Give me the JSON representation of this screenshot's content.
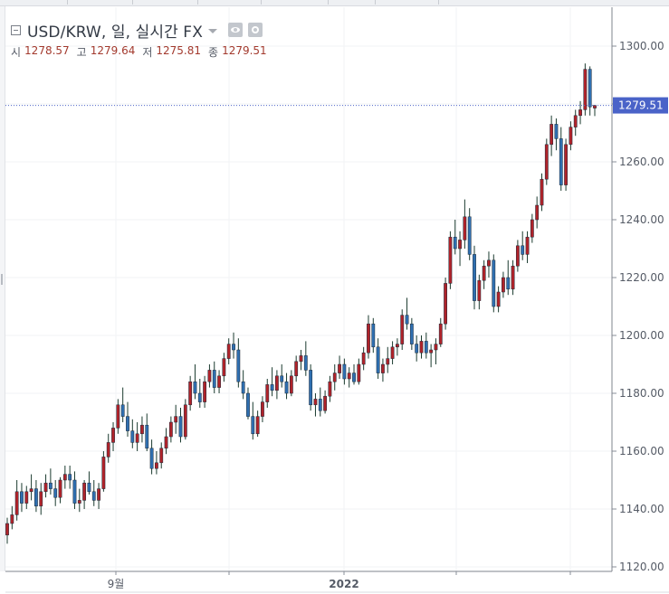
{
  "header": {
    "title": "USD/KRW, 일, 실시간 FX",
    "ohlc": [
      {
        "label": "시",
        "value": "1278.57"
      },
      {
        "label": "고",
        "value": "1279.64"
      },
      {
        "label": "저",
        "value": "1275.81"
      },
      {
        "label": "종",
        "value": "1279.51"
      }
    ],
    "icons": [
      "collapse-icon",
      "dropdown-icon",
      "visibility-icon",
      "settings-icon"
    ]
  },
  "colors": {
    "up": "#b0232a",
    "down": "#2f6fb0",
    "wick": "#1b3b2f",
    "grid": "#f2f3f5",
    "axis_text": "#555b66",
    "price_line": "#5267c9",
    "price_label_bg": "#4a63c8"
  },
  "chart_data": {
    "type": "candlestick",
    "ylim": [
      1120,
      1305
    ],
    "y_ticks": [
      "1120.00",
      "1140.00",
      "1160.00",
      "1180.00",
      "1200.00",
      "1220.00",
      "1240.00",
      "1260.00",
      "1280.00",
      "1300.00"
    ],
    "x_tick_labels": [
      "9월",
      "2022"
    ],
    "last_price": "1279.51",
    "candles": [
      [
        1131,
        1137,
        1128,
        1135
      ],
      [
        1135,
        1141,
        1133,
        1138
      ],
      [
        1138,
        1150,
        1136,
        1146
      ],
      [
        1146,
        1149,
        1139,
        1142
      ],
      [
        1142,
        1148,
        1140,
        1146
      ],
      [
        1146,
        1152,
        1143,
        1147
      ],
      [
        1147,
        1150,
        1139,
        1141
      ],
      [
        1141,
        1149,
        1138,
        1146
      ],
      [
        1146,
        1152,
        1144,
        1149
      ],
      [
        1149,
        1154,
        1145,
        1147
      ],
      [
        1147,
        1150,
        1141,
        1144
      ],
      [
        1144,
        1151,
        1142,
        1150
      ],
      [
        1150,
        1155,
        1147,
        1152
      ],
      [
        1152,
        1155,
        1147,
        1150
      ],
      [
        1150,
        1153,
        1140,
        1142
      ],
      [
        1142,
        1147,
        1139,
        1143
      ],
      [
        1143,
        1150,
        1140,
        1149
      ],
      [
        1149,
        1153,
        1145,
        1146
      ],
      [
        1146,
        1150,
        1141,
        1143
      ],
      [
        1143,
        1149,
        1140,
        1147
      ],
      [
        1147,
        1160,
        1146,
        1158
      ],
      [
        1158,
        1166,
        1156,
        1163
      ],
      [
        1163,
        1170,
        1160,
        1168
      ],
      [
        1168,
        1178,
        1166,
        1176
      ],
      [
        1176,
        1182,
        1170,
        1172
      ],
      [
        1172,
        1177,
        1165,
        1167
      ],
      [
        1167,
        1171,
        1161,
        1163
      ],
      [
        1163,
        1170,
        1160,
        1166
      ],
      [
        1166,
        1172,
        1163,
        1169
      ],
      [
        1169,
        1173,
        1160,
        1161
      ],
      [
        1161,
        1164,
        1152,
        1154
      ],
      [
        1154,
        1160,
        1152,
        1156
      ],
      [
        1156,
        1163,
        1154,
        1161
      ],
      [
        1161,
        1168,
        1159,
        1165
      ],
      [
        1165,
        1172,
        1163,
        1170
      ],
      [
        1170,
        1176,
        1166,
        1172
      ],
      [
        1172,
        1175,
        1163,
        1165
      ],
      [
        1165,
        1178,
        1164,
        1176
      ],
      [
        1176,
        1186,
        1174,
        1184
      ],
      [
        1184,
        1190,
        1178,
        1180
      ],
      [
        1180,
        1185,
        1175,
        1177
      ],
      [
        1177,
        1186,
        1175,
        1184
      ],
      [
        1184,
        1190,
        1182,
        1188
      ],
      [
        1188,
        1191,
        1180,
        1182
      ],
      [
        1182,
        1188,
        1180,
        1186
      ],
      [
        1186,
        1194,
        1184,
        1192
      ],
      [
        1192,
        1199,
        1190,
        1197
      ],
      [
        1197,
        1201,
        1192,
        1195
      ],
      [
        1195,
        1199,
        1182,
        1184
      ],
      [
        1184,
        1188,
        1178,
        1180
      ],
      [
        1180,
        1182,
        1171,
        1172
      ],
      [
        1172,
        1177,
        1164,
        1166
      ],
      [
        1166,
        1174,
        1165,
        1172
      ],
      [
        1172,
        1179,
        1170,
        1177
      ],
      [
        1177,
        1185,
        1175,
        1183
      ],
      [
        1183,
        1189,
        1179,
        1181
      ],
      [
        1181,
        1188,
        1178,
        1186
      ],
      [
        1186,
        1190,
        1182,
        1184
      ],
      [
        1184,
        1187,
        1178,
        1180
      ],
      [
        1180,
        1188,
        1179,
        1186
      ],
      [
        1186,
        1193,
        1184,
        1191
      ],
      [
        1191,
        1195,
        1188,
        1193
      ],
      [
        1193,
        1198,
        1186,
        1188
      ],
      [
        1188,
        1190,
        1174,
        1176
      ],
      [
        1176,
        1180,
        1172,
        1178
      ],
      [
        1178,
        1182,
        1172,
        1174
      ],
      [
        1174,
        1181,
        1173,
        1179
      ],
      [
        1179,
        1186,
        1177,
        1184
      ],
      [
        1184,
        1190,
        1181,
        1187
      ],
      [
        1187,
        1193,
        1185,
        1190
      ],
      [
        1190,
        1192,
        1183,
        1185
      ],
      [
        1185,
        1189,
        1182,
        1187
      ],
      [
        1187,
        1190,
        1183,
        1184
      ],
      [
        1184,
        1192,
        1183,
        1190
      ],
      [
        1190,
        1196,
        1188,
        1194
      ],
      [
        1194,
        1207,
        1192,
        1204
      ],
      [
        1204,
        1206,
        1194,
        1196
      ],
      [
        1196,
        1199,
        1185,
        1187
      ],
      [
        1187,
        1192,
        1184,
        1190
      ],
      [
        1190,
        1196,
        1187,
        1192
      ],
      [
        1192,
        1198,
        1190,
        1196
      ],
      [
        1196,
        1199,
        1193,
        1197
      ],
      [
        1197,
        1209,
        1195,
        1207
      ],
      [
        1207,
        1213,
        1202,
        1204
      ],
      [
        1204,
        1206,
        1195,
        1197
      ],
      [
        1197,
        1200,
        1191,
        1194
      ],
      [
        1194,
        1200,
        1192,
        1198
      ],
      [
        1198,
        1201,
        1192,
        1194
      ],
      [
        1194,
        1197,
        1189,
        1195
      ],
      [
        1195,
        1199,
        1190,
        1197
      ],
      [
        1197,
        1206,
        1196,
        1204
      ],
      [
        1204,
        1220,
        1202,
        1218
      ],
      [
        1218,
        1236,
        1216,
        1234
      ],
      [
        1234,
        1240,
        1228,
        1230
      ],
      [
        1230,
        1236,
        1224,
        1233
      ],
      [
        1233,
        1247,
        1230,
        1241
      ],
      [
        1241,
        1244,
        1226,
        1228
      ],
      [
        1228,
        1231,
        1209,
        1212
      ],
      [
        1212,
        1221,
        1209,
        1219
      ],
      [
        1219,
        1226,
        1216,
        1224
      ],
      [
        1224,
        1229,
        1220,
        1226
      ],
      [
        1226,
        1228,
        1208,
        1210
      ],
      [
        1210,
        1217,
        1208,
        1215
      ],
      [
        1215,
        1222,
        1213,
        1220
      ],
      [
        1220,
        1226,
        1214,
        1216
      ],
      [
        1216,
        1226,
        1214,
        1224
      ],
      [
        1224,
        1233,
        1222,
        1231
      ],
      [
        1231,
        1236,
        1226,
        1228
      ],
      [
        1228,
        1236,
        1225,
        1234
      ],
      [
        1234,
        1242,
        1232,
        1240
      ],
      [
        1240,
        1248,
        1237,
        1245
      ],
      [
        1245,
        1256,
        1243,
        1254
      ],
      [
        1254,
        1268,
        1252,
        1266
      ],
      [
        1266,
        1276,
        1262,
        1273
      ],
      [
        1273,
        1275,
        1264,
        1268
      ],
      [
        1268,
        1272,
        1250,
        1252
      ],
      [
        1252,
        1268,
        1250,
        1266
      ],
      [
        1266,
        1274,
        1264,
        1272
      ],
      [
        1272,
        1278,
        1269,
        1276
      ],
      [
        1276,
        1281,
        1273,
        1278
      ],
      [
        1278,
        1294,
        1276,
        1292
      ],
      [
        1292,
        1293,
        1276,
        1279
      ],
      [
        1278.57,
        1279.64,
        1275.81,
        1279.51
      ]
    ]
  }
}
